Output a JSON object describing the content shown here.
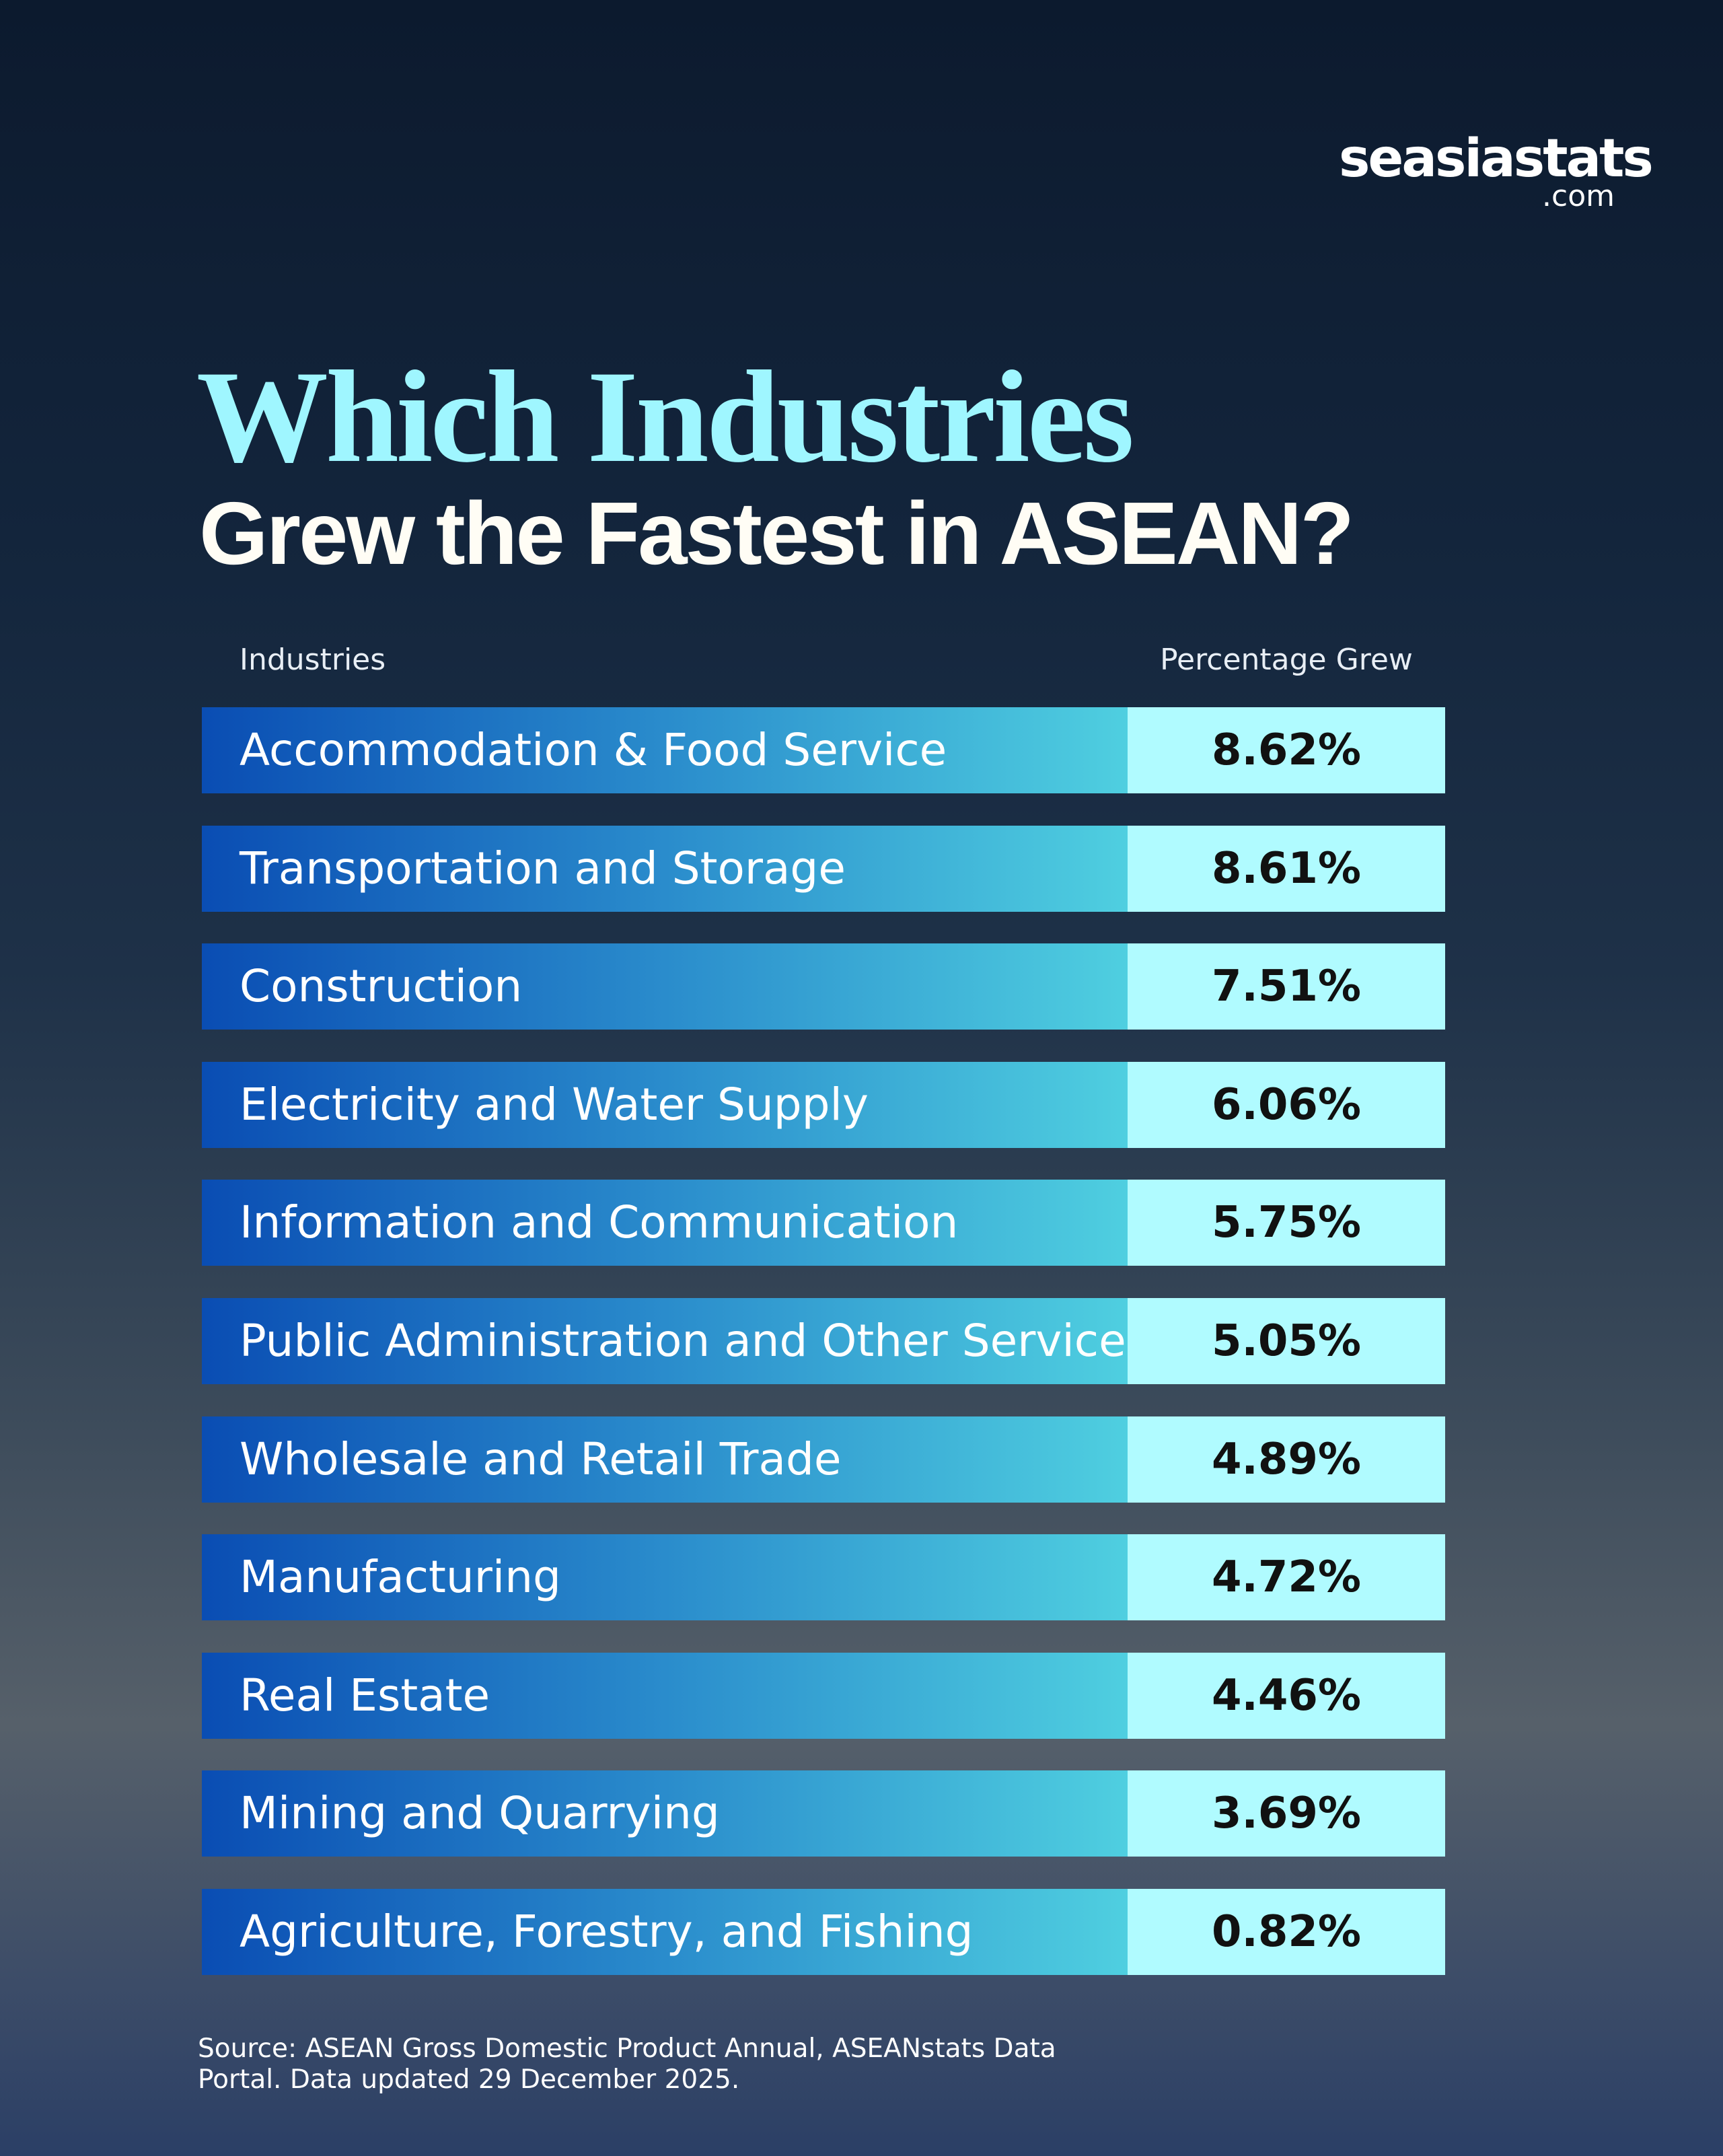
{
  "logo": {
    "name": "seasiastats",
    "domain": ".com"
  },
  "title": {
    "line1": "Which Industries",
    "line2": "Grew the Fastest in ASEAN?"
  },
  "table": {
    "header": [
      "Industries",
      "Percentage Grew"
    ],
    "rows": [
      [
        "Accommodation & Food Service",
        "8.62%"
      ],
      [
        "Transportation and Storage",
        "8.61%"
      ],
      [
        "Construction",
        "7.51%"
      ],
      [
        "Electricity and Water Supply",
        "6.06%"
      ],
      [
        "Information and Communication",
        "5.75%"
      ],
      [
        "Public Administration and Other Services",
        "5.05%"
      ],
      [
        "Wholesale and Retail Trade",
        "4.89%"
      ],
      [
        "Manufacturing",
        "4.72%"
      ],
      [
        "Real Estate",
        "4.46%"
      ],
      [
        "Mining and Quarrying",
        "3.69%"
      ],
      [
        "Agriculture, Forestry, and Fishing",
        "0.82%"
      ]
    ]
  },
  "source": "Source: ASEAN Gross Domestic Product Annual, ASEANstats Data Portal. Data updated 29 December 2025."
}
